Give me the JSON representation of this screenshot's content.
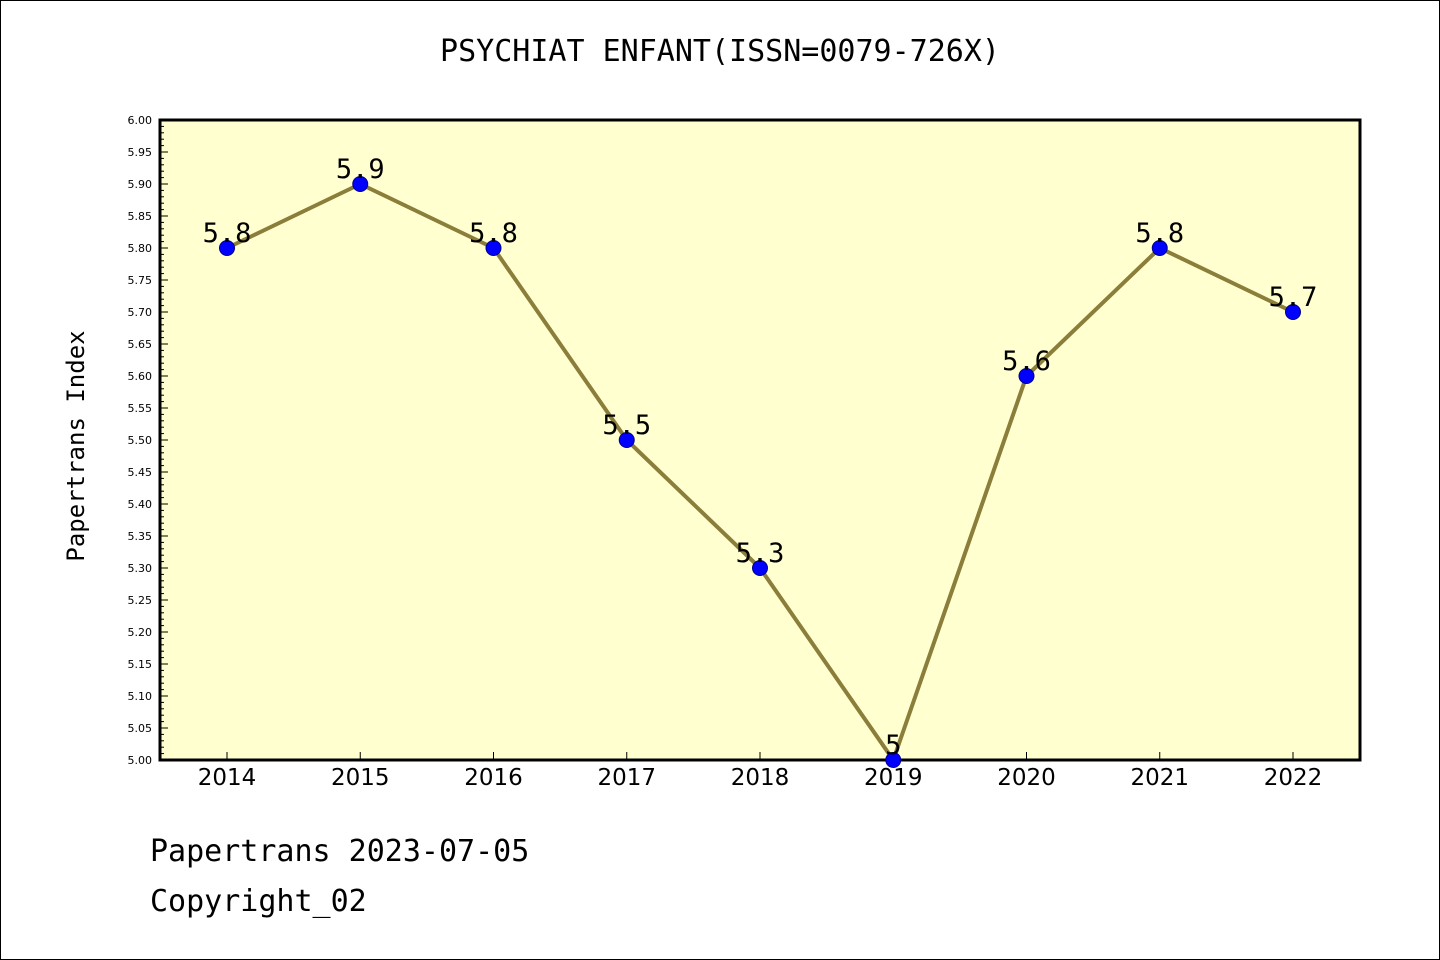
{
  "colors": {
    "plot_background": "#ffffd0",
    "line": "#8b7d3a",
    "marker": "#0000ff"
  },
  "footer": {
    "date_line": "Papertrans 2023-07-05",
    "copyright": "Copyright_02"
  },
  "chart_data": {
    "type": "line",
    "title": "PSYCHIAT ENFANT(ISSN=0079-726X)",
    "xlabel": "",
    "ylabel": "Papertrans Index",
    "categories": [
      "2014",
      "2015",
      "2016",
      "2017",
      "2018",
      "2019",
      "2020",
      "2021",
      "2022"
    ],
    "values": [
      5.8,
      5.9,
      5.8,
      5.5,
      5.3,
      5.0,
      5.6,
      5.8,
      5.7
    ],
    "data_labels": [
      "5.8",
      "5.9",
      "5.8",
      "5.5",
      "5.3",
      "5",
      "5.6",
      "5.8",
      "5.7"
    ],
    "ylim": [
      5.0,
      6.0
    ],
    "y_major_step": 0.05,
    "y_tick_labels": [
      "5.00",
      "5.05",
      "5.10",
      "5.15",
      "5.20",
      "5.25",
      "5.30",
      "5.35",
      "5.40",
      "5.45",
      "5.50",
      "5.55",
      "5.60",
      "5.65",
      "5.70",
      "5.75",
      "5.80",
      "5.85",
      "5.90",
      "5.95",
      "6.00"
    ],
    "grid": false,
    "legend": "none"
  }
}
